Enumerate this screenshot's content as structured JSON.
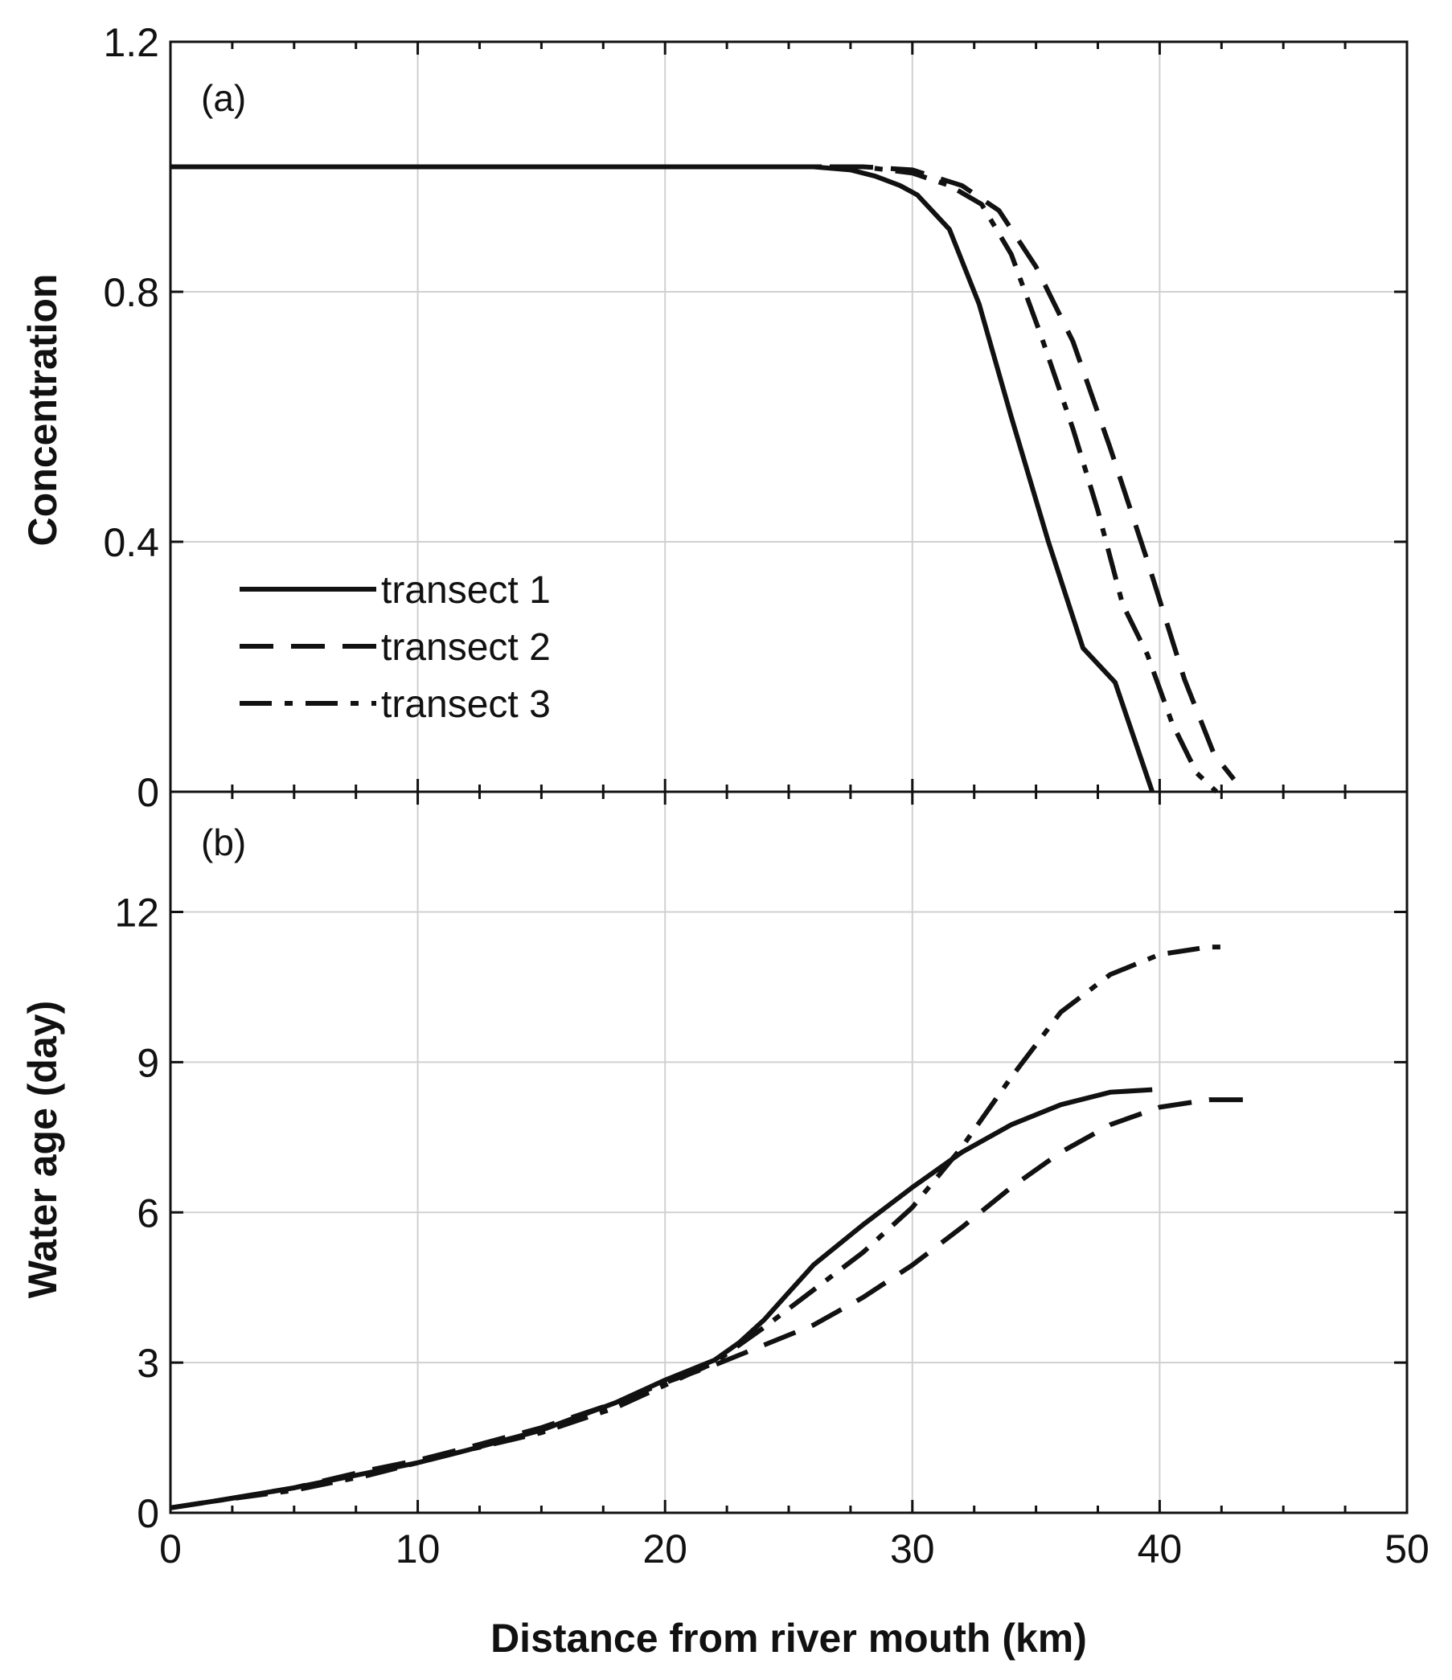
{
  "chart_data": [
    {
      "type": "line",
      "panel_label": "(a)",
      "title": "",
      "xlabel": "",
      "ylabel": "Concentration",
      "xlim": [
        0,
        50
      ],
      "ylim": [
        0,
        1.2
      ],
      "grid": true,
      "xticks": [
        0,
        10,
        20,
        30,
        40,
        50
      ],
      "yticks": [
        0,
        0.4,
        0.8,
        1.2
      ],
      "ytick_labels": [
        "0",
        "0.4",
        "0.8",
        "1.2"
      ],
      "legend": {
        "placement": "lower-left"
      },
      "series": [
        {
          "name": "transect 1",
          "style": "solid",
          "x": [
            0,
            26,
            27.5,
            28.5,
            29.5,
            30.2,
            31.5,
            32.7,
            34,
            35.5,
            36.9,
            38.2,
            39.7
          ],
          "y": [
            1.0,
            1.0,
            0.995,
            0.985,
            0.97,
            0.955,
            0.9,
            0.78,
            0.6,
            0.4,
            0.23,
            0.175,
            0.0
          ]
        },
        {
          "name": "transect 2",
          "style": "dashed",
          "x": [
            0,
            26,
            28,
            30,
            32,
            33.5,
            35,
            36.5,
            38,
            39.5,
            41,
            42.2,
            43
          ],
          "y": [
            1.0,
            1.0,
            1.0,
            0.995,
            0.97,
            0.93,
            0.84,
            0.72,
            0.55,
            0.37,
            0.18,
            0.06,
            0.02
          ]
        },
        {
          "name": "transect 3",
          "style": "dashdot",
          "x": [
            0,
            26,
            28,
            30,
            31.5,
            32.8,
            34,
            35.2,
            36.5,
            37.5,
            38.5,
            39.5,
            40.5,
            41.5,
            42.3
          ],
          "y": [
            1.0,
            1.0,
            1.0,
            0.99,
            0.97,
            0.94,
            0.86,
            0.73,
            0.58,
            0.45,
            0.3,
            0.22,
            0.11,
            0.03,
            0.0
          ]
        }
      ]
    },
    {
      "type": "line",
      "panel_label": "(b)",
      "title": "",
      "xlabel": "Distance from river mouth (km)",
      "ylabel": "Water age (day)",
      "xlim": [
        0,
        50
      ],
      "ylim": [
        0,
        14.4
      ],
      "grid": true,
      "xticks": [
        0,
        10,
        20,
        30,
        40,
        50
      ],
      "xtick_labels": [
        "0",
        "10",
        "20",
        "30",
        "40",
        "50"
      ],
      "yticks": [
        0,
        3,
        6,
        9,
        12
      ],
      "ytick_labels": [
        "0",
        "3",
        "6",
        "9",
        "12"
      ],
      "series": [
        {
          "name": "transect 1",
          "style": "solid",
          "x": [
            0,
            2,
            5,
            8,
            10,
            12,
            15,
            18,
            20,
            22,
            23,
            24,
            25,
            26,
            28,
            30,
            32,
            34,
            36,
            38,
            39.7
          ],
          "y": [
            0.1,
            0.25,
            0.5,
            0.8,
            1.0,
            1.25,
            1.65,
            2.2,
            2.65,
            3.05,
            3.4,
            3.85,
            4.4,
            4.95,
            5.75,
            6.5,
            7.2,
            7.75,
            8.15,
            8.4,
            8.45
          ]
        },
        {
          "name": "transect 2",
          "style": "dashed",
          "x": [
            0,
            2,
            5,
            8,
            10,
            12,
            15,
            18,
            20,
            22,
            24,
            26,
            28,
            30,
            32,
            34,
            36,
            38,
            40,
            42,
            44
          ],
          "y": [
            0.1,
            0.25,
            0.5,
            0.85,
            1.05,
            1.3,
            1.7,
            2.2,
            2.6,
            2.95,
            3.35,
            3.75,
            4.3,
            4.95,
            5.7,
            6.5,
            7.2,
            7.75,
            8.1,
            8.25,
            8.25
          ]
        },
        {
          "name": "transect 3",
          "style": "dashdot",
          "x": [
            0,
            2,
            5,
            8,
            10,
            12,
            15,
            18,
            20,
            22,
            24,
            26,
            28,
            30,
            32,
            34,
            36,
            38,
            40,
            42,
            42.5
          ],
          "y": [
            0.1,
            0.25,
            0.45,
            0.75,
            1.0,
            1.25,
            1.6,
            2.1,
            2.55,
            3.0,
            3.7,
            4.45,
            5.2,
            6.1,
            7.3,
            8.7,
            10.0,
            10.75,
            11.15,
            11.3,
            11.3
          ]
        }
      ]
    }
  ]
}
